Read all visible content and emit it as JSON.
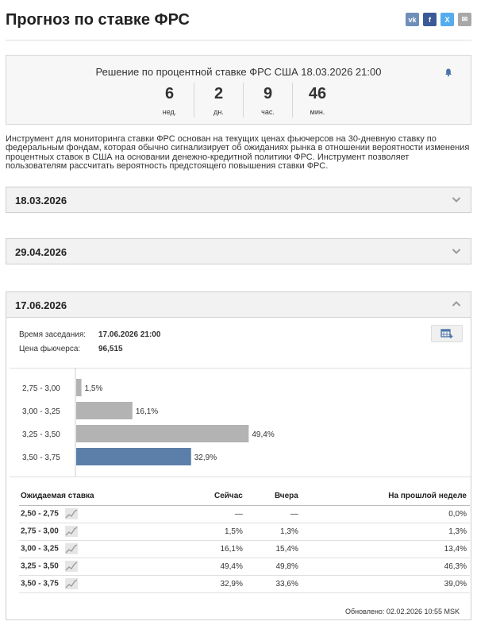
{
  "page_title": "Прогноз по ставке ФРС",
  "share": [
    "vk",
    "f",
    "X",
    "✉"
  ],
  "countdown": {
    "title": "Решение по процентной ставке ФРС США 18.03.2026 21:00",
    "units": [
      {
        "value": "6",
        "label": "нед."
      },
      {
        "value": "2",
        "label": "дн."
      },
      {
        "value": "9",
        "label": "час."
      },
      {
        "value": "46",
        "label": "мин."
      }
    ]
  },
  "description": "Инструмент для мониторинга ставки ФРС основан на текущих ценах фьючерсов на 30-дневную ставку по федеральным фондам, которая обычно сигнализирует об ожиданиях рынка в отношении вероятности изменения процентных ставок в США на основании денежно-кредитной политики ФРС. Инструмент позволяет пользователям рассчитать вероятность предстоящего повышения ставки ФРС.",
  "accordions": [
    {
      "title": "18.03.2026"
    },
    {
      "title": "29.04.2026"
    },
    {
      "title": "17.06.2026"
    }
  ],
  "meeting": {
    "time_label": "Время заседания:",
    "time_value": "17.06.2026 21:00",
    "price_label": "Цена фьючерса:",
    "price_value": "96,515"
  },
  "chart_data": {
    "type": "bar",
    "orientation": "horizontal",
    "categories": [
      "2,75 - 3,00",
      "3,00 - 3,25",
      "3,25 - 3,50",
      "3,50 - 3,75"
    ],
    "values": [
      1.5,
      16.1,
      49.4,
      32.9
    ],
    "value_labels": [
      "1,5%",
      "16,1%",
      "49,4%",
      "32,9%"
    ],
    "colors": [
      "#b3b3b3",
      "#b3b3b3",
      "#b3b3b3",
      "#5b7fa8"
    ],
    "xlim": [
      0,
      100
    ]
  },
  "table": {
    "headers": [
      "Ожидаемая ставка",
      "Сейчас",
      "Вчера",
      "На прошлой неделе"
    ],
    "rows": [
      [
        "2,50 - 2,75",
        "—",
        "—",
        "0,0%"
      ],
      [
        "2,75 - 3,00",
        "1,5%",
        "1,3%",
        "1,3%"
      ],
      [
        "3,00 - 3,25",
        "16,1%",
        "15,4%",
        "13,4%"
      ],
      [
        "3,25 - 3,50",
        "49,4%",
        "49,8%",
        "46,3%"
      ],
      [
        "3,50 - 3,75",
        "32,9%",
        "33,6%",
        "39,0%"
      ]
    ]
  },
  "updated": "Обновлено: 02.02.2026 10:55 MSK"
}
